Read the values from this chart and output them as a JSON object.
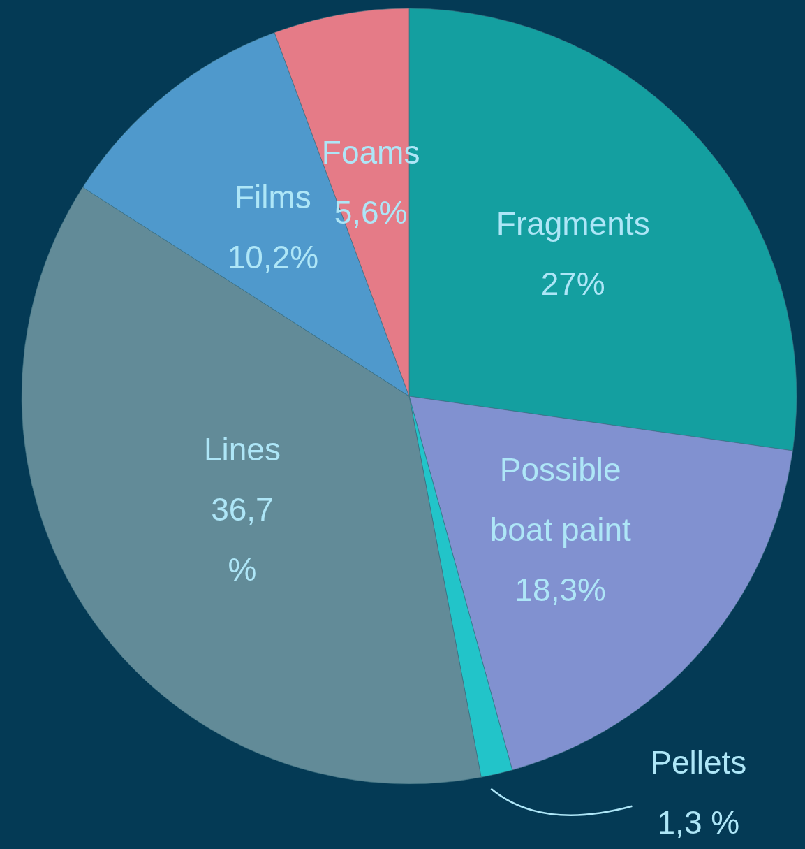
{
  "chart_data": {
    "type": "pie",
    "categories": [
      "Fragments",
      "Possible\nboat paint",
      "Pellets",
      "Lines",
      "Films",
      "Foams"
    ],
    "values": [
      27,
      18.3,
      1.3,
      36.7,
      10.2,
      5.6
    ],
    "colors": [
      "#149fa0",
      "#8191d0",
      "#22c4c9",
      "#628b98",
      "#4f99cc",
      "#e57b87"
    ],
    "value_labels": [
      "27%",
      "18,3%",
      "1,3 %",
      "36,7\n%",
      "10,2%",
      "5,6%"
    ]
  }
}
